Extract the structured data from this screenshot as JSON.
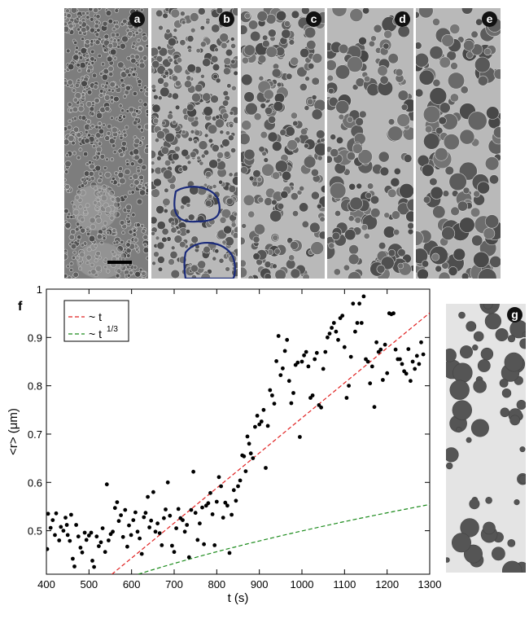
{
  "panels": [
    {
      "label": "a"
    },
    {
      "label": "b"
    },
    {
      "label": "c"
    },
    {
      "label": "d"
    },
    {
      "label": "e"
    }
  ],
  "panel_g": {
    "label": "g"
  },
  "chart_data": {
    "type": "scatter",
    "panel_label": "f",
    "xlabel": "t (s)",
    "ylabel": "<r> (μm)",
    "xlim": [
      400,
      1300
    ],
    "ylim": [
      0.41,
      1.0
    ],
    "x_ticks": [
      400,
      500,
      600,
      700,
      800,
      900,
      1000,
      1100,
      1200,
      1300
    ],
    "y_ticks": [
      0.5,
      0.6,
      0.7,
      0.8,
      0.9,
      1
    ],
    "legend": {
      "placement": "top-left",
      "entries": [
        {
          "label": "~ t",
          "color": "#e02020",
          "style": "dashed"
        },
        {
          "label": "~ t",
          "superscript": "1/3",
          "color": "#1a8a1a",
          "style": "dashed"
        }
      ]
    },
    "fit_linear": {
      "slope": 0.000725,
      "intercept": 0.0084
    },
    "fit_cuberoot": {
      "coef": 0.05993,
      "offset": -0.0998
    },
    "points": [
      [
        402,
        0.462
      ],
      [
        404,
        0.535
      ],
      [
        410,
        0.506
      ],
      [
        415,
        0.522
      ],
      [
        420,
        0.491
      ],
      [
        423,
        0.536
      ],
      [
        430,
        0.48
      ],
      [
        434,
        0.508
      ],
      [
        440,
        0.5
      ],
      [
        445,
        0.527
      ],
      [
        448,
        0.512
      ],
      [
        450,
        0.491
      ],
      [
        455,
        0.479
      ],
      [
        458,
        0.533
      ],
      [
        462,
        0.442
      ],
      [
        466,
        0.426
      ],
      [
        470,
        0.512
      ],
      [
        475,
        0.488
      ],
      [
        480,
        0.465
      ],
      [
        484,
        0.455
      ],
      [
        490,
        0.496
      ],
      [
        494,
        0.481
      ],
      [
        500,
        0.49
      ],
      [
        505,
        0.496
      ],
      [
        508,
        0.438
      ],
      [
        512,
        0.425
      ],
      [
        518,
        0.488
      ],
      [
        523,
        0.468
      ],
      [
        528,
        0.476
      ],
      [
        532,
        0.505
      ],
      [
        538,
        0.456
      ],
      [
        542,
        0.596
      ],
      [
        546,
        0.48
      ],
      [
        551,
        0.493
      ],
      [
        556,
        0.498
      ],
      [
        561,
        0.547
      ],
      [
        566,
        0.559
      ],
      [
        570,
        0.52
      ],
      [
        575,
        0.532
      ],
      [
        580,
        0.487
      ],
      [
        585,
        0.543
      ],
      [
        590,
        0.467
      ],
      [
        594,
        0.511
      ],
      [
        599,
        0.491
      ],
      [
        604,
        0.522
      ],
      [
        609,
        0.538
      ],
      [
        614,
        0.498
      ],
      [
        619,
        0.484
      ],
      [
        624,
        0.452
      ],
      [
        629,
        0.528
      ],
      [
        633,
        0.537
      ],
      [
        638,
        0.57
      ],
      [
        642,
        0.507
      ],
      [
        646,
        0.521
      ],
      [
        651,
        0.58
      ],
      [
        656,
        0.498
      ],
      [
        661,
        0.515
      ],
      [
        666,
        0.495
      ],
      [
        671,
        0.47
      ],
      [
        676,
        0.526
      ],
      [
        680,
        0.544
      ],
      [
        685,
        0.6
      ],
      [
        690,
        0.531
      ],
      [
        695,
        0.469
      ],
      [
        700,
        0.456
      ],
      [
        705,
        0.505
      ],
      [
        710,
        0.545
      ],
      [
        715,
        0.526
      ],
      [
        720,
        0.522
      ],
      [
        725,
        0.498
      ],
      [
        730,
        0.512
      ],
      [
        735,
        0.445
      ],
      [
        740,
        0.543
      ],
      [
        745,
        0.622
      ],
      [
        750,
        0.537
      ],
      [
        755,
        0.481
      ],
      [
        760,
        0.515
      ],
      [
        766,
        0.548
      ],
      [
        770,
        0.472
      ],
      [
        775,
        0.552
      ],
      [
        780,
        0.557
      ],
      [
        785,
        0.578
      ],
      [
        790,
        0.534
      ],
      [
        795,
        0.47
      ],
      [
        800,
        0.56
      ],
      [
        805,
        0.611
      ],
      [
        810,
        0.592
      ],
      [
        815,
        0.527
      ],
      [
        820,
        0.558
      ],
      [
        825,
        0.552
      ],
      [
        830,
        0.454
      ],
      [
        835,
        0.533
      ],
      [
        840,
        0.584
      ],
      [
        845,
        0.562
      ],
      [
        850,
        0.592
      ],
      [
        855,
        0.604
      ],
      [
        860,
        0.656
      ],
      [
        864,
        0.654
      ],
      [
        868,
        0.623
      ],
      [
        872,
        0.695
      ],
      [
        876,
        0.68
      ],
      [
        880,
        0.66
      ],
      [
        885,
        0.65
      ],
      [
        890,
        0.715
      ],
      [
        895,
        0.738
      ],
      [
        900,
        0.72
      ],
      [
        905,
        0.726
      ],
      [
        910,
        0.75
      ],
      [
        915,
        0.63
      ],
      [
        920,
        0.717
      ],
      [
        925,
        0.791
      ],
      [
        930,
        0.78
      ],
      [
        935,
        0.763
      ],
      [
        940,
        0.851
      ],
      [
        945,
        0.903
      ],
      [
        950,
        0.822
      ],
      [
        955,
        0.836
      ],
      [
        960,
        0.872
      ],
      [
        965,
        0.895
      ],
      [
        970,
        0.81
      ],
      [
        975,
        0.764
      ],
      [
        980,
        0.785
      ],
      [
        985,
        0.843
      ],
      [
        990,
        0.848
      ],
      [
        995,
        0.694
      ],
      [
        1000,
        0.85
      ],
      [
        1005,
        0.863
      ],
      [
        1010,
        0.87
      ],
      [
        1015,
        0.84
      ],
      [
        1020,
        0.775
      ],
      [
        1025,
        0.78
      ],
      [
        1030,
        0.855
      ],
      [
        1035,
        0.868
      ],
      [
        1040,
        0.76
      ],
      [
        1045,
        0.755
      ],
      [
        1050,
        0.835
      ],
      [
        1055,
        0.87
      ],
      [
        1060,
        0.9
      ],
      [
        1065,
        0.908
      ],
      [
        1070,
        0.92
      ],
      [
        1075,
        0.93
      ],
      [
        1080,
        0.912
      ],
      [
        1085,
        0.895
      ],
      [
        1090,
        0.94
      ],
      [
        1095,
        0.945
      ],
      [
        1100,
        0.88
      ],
      [
        1105,
        0.775
      ],
      [
        1110,
        0.8
      ],
      [
        1115,
        0.86
      ],
      [
        1120,
        0.97
      ],
      [
        1125,
        0.912
      ],
      [
        1130,
        0.93
      ],
      [
        1135,
        0.97
      ],
      [
        1140,
        0.93
      ],
      [
        1145,
        0.985
      ],
      [
        1150,
        0.855
      ],
      [
        1155,
        0.85
      ],
      [
        1160,
        0.805
      ],
      [
        1165,
        0.84
      ],
      [
        1170,
        0.756
      ],
      [
        1175,
        0.89
      ],
      [
        1180,
        0.87
      ],
      [
        1185,
        0.875
      ],
      [
        1190,
        0.812
      ],
      [
        1195,
        0.885
      ],
      [
        1200,
        0.826
      ],
      [
        1205,
        0.95
      ],
      [
        1210,
        0.948
      ],
      [
        1215,
        0.95
      ],
      [
        1220,
        0.875
      ],
      [
        1225,
        0.855
      ],
      [
        1230,
        0.855
      ],
      [
        1235,
        0.845
      ],
      [
        1240,
        0.83
      ],
      [
        1245,
        0.825
      ],
      [
        1250,
        0.876
      ],
      [
        1255,
        0.81
      ],
      [
        1260,
        0.85
      ],
      [
        1265,
        0.835
      ],
      [
        1270,
        0.862
      ],
      [
        1275,
        0.845
      ],
      [
        1280,
        0.89
      ],
      [
        1285,
        0.865
      ]
    ]
  }
}
